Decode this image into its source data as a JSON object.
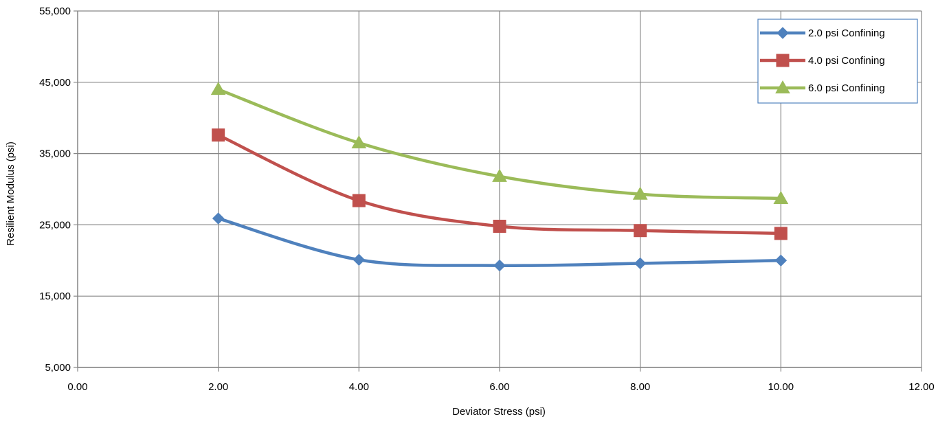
{
  "chart_data": {
    "type": "line",
    "title": "",
    "xlabel": "Deviator Stress (psi)",
    "ylabel": "Resilient Modulus (psi)",
    "xlim": [
      0,
      12
    ],
    "ylim": [
      5000,
      55000
    ],
    "x_ticks": [
      0,
      2,
      4,
      6,
      8,
      10,
      12
    ],
    "x_tick_labels": [
      "0.00",
      "2.00",
      "4.00",
      "6.00",
      "8.00",
      "10.00",
      "12.00"
    ],
    "y_ticks": [
      5000,
      15000,
      25000,
      35000,
      45000,
      55000
    ],
    "y_tick_labels": [
      "5,000",
      "15,000",
      "25,000",
      "35,000",
      "45,000",
      "55,000"
    ],
    "grid": true,
    "smooth": true,
    "legend_position": "top-right",
    "series": [
      {
        "name": "2.0 psi Confining",
        "color": "#4F81BD",
        "marker": "diamond",
        "x": [
          2.0,
          4.0,
          6.0,
          8.0,
          10.0
        ],
        "y": [
          25900,
          20100,
          19300,
          19600,
          20000
        ]
      },
      {
        "name": "4.0 psi Confining",
        "color": "#C0504D",
        "marker": "square",
        "x": [
          2.0,
          4.0,
          6.0,
          8.0,
          10.0
        ],
        "y": [
          37600,
          28400,
          24800,
          24200,
          23800
        ]
      },
      {
        "name": "6.0 psi Confining",
        "color": "#9BBB59",
        "marker": "triangle",
        "x": [
          2.0,
          4.0,
          6.0,
          8.0,
          10.0
        ],
        "y": [
          44000,
          36500,
          31800,
          29300,
          28700
        ]
      }
    ]
  },
  "colors": {
    "gridline": "#868686",
    "axis": "#868686",
    "legend_border": "#4F81BD"
  }
}
